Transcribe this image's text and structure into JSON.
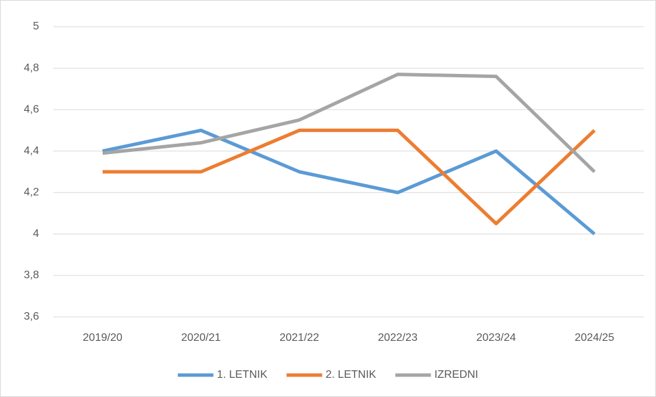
{
  "chart_data": {
    "type": "line",
    "categories": [
      "2019/20",
      "2020/21",
      "2021/22",
      "2022/23",
      "2023/24",
      "2024/25"
    ],
    "series": [
      {
        "name": "1. LETNIK",
        "color": "#5b9bd5",
        "values": [
          4.4,
          4.5,
          4.3,
          4.2,
          4.4,
          4.0
        ]
      },
      {
        "name": "2. LETNIK",
        "color": "#ed7d31",
        "values": [
          4.3,
          4.3,
          4.5,
          4.5,
          4.05,
          4.5
        ]
      },
      {
        "name": "IZREDNI",
        "color": "#a5a5a5",
        "values": [
          4.39,
          4.44,
          4.55,
          4.77,
          4.76,
          4.3
        ]
      }
    ],
    "ylim": [
      3.6,
      5
    ],
    "yticks": [
      {
        "value": 3.6,
        "label": "3,6"
      },
      {
        "value": 3.8,
        "label": "3,8"
      },
      4,
      {
        "value": 4.2,
        "label": "4,2"
      },
      {
        "value": 4.4,
        "label": "4,4"
      },
      {
        "value": 4.6,
        "label": "4,6"
      },
      {
        "value": 4.8,
        "label": "4,8"
      },
      5
    ],
    "grid": true,
    "legend": "bottom"
  }
}
